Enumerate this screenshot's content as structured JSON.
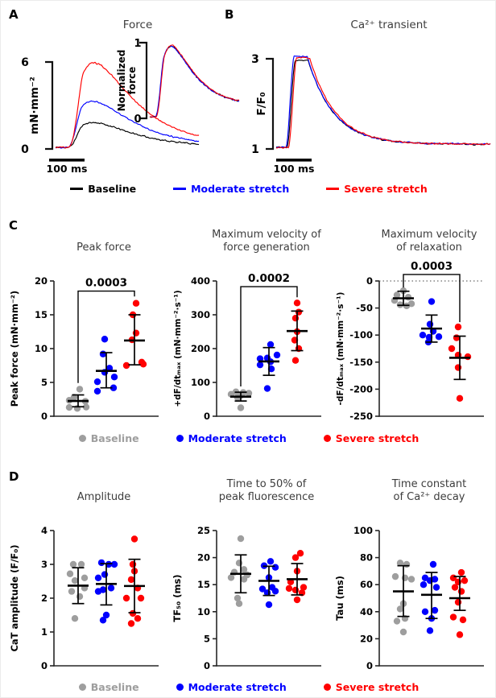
{
  "figure": {
    "panel_a": "A",
    "panel_b": "B",
    "panel_c": "C",
    "panel_d": "D"
  },
  "colors": {
    "baseline_trace": "#000000",
    "moderate": "#0000ff",
    "severe": "#ff0000",
    "baseline_dot": "#9e9e9e",
    "title_text": "#3d3d3d",
    "axis": "#262626"
  },
  "legends": {
    "traces": [
      {
        "label": "Baseline",
        "color": "#000000"
      },
      {
        "label": "Moderate stretch",
        "color": "#0000ff"
      },
      {
        "label": "Severe stretch",
        "color": "#ff0000"
      }
    ],
    "dots": [
      {
        "label": "Baseline",
        "color": "#9e9e9e"
      },
      {
        "label": "Moderate stretch",
        "color": "#0000ff"
      },
      {
        "label": "Severe stretch",
        "color": "#ff0000"
      }
    ]
  },
  "chart_data": [
    {
      "id": "force_traces",
      "type": "line",
      "panel": "A",
      "ylabel": "mN·mm⁻²",
      "yticks": [
        "6",
        "0"
      ],
      "vmin": 0,
      "vmax": 6,
      "scalebar_label": "100 ms",
      "scalebar_ms": 100,
      "shape": {
        "t0": 38,
        "tau_r": 65,
        "tau_d": 115,
        "soft": 55,
        "tail": 0.04,
        "noise": 0.14,
        "dur": 480
      },
      "series": [
        {
          "name": "Baseline",
          "color": "#000000",
          "amp": 1.72,
          "seed": 11,
          "dt": 0,
          "nmul": 1
        },
        {
          "name": "Moderate stretch",
          "color": "#0000ff",
          "amp": 3.2,
          "seed": 22,
          "dt": -2,
          "nmul": 0.9
        },
        {
          "name": "Severe stretch",
          "color": "#ff0000",
          "amp": 5.85,
          "seed": 33,
          "dt": 3,
          "nmul": 1
        }
      ],
      "inset": {
        "title": "Force",
        "ylabel_lines": [
          "Normalized",
          "force"
        ],
        "yticks": [
          "1",
          "0"
        ],
        "vmin": 0,
        "vmax": 1,
        "shape": {
          "t0": 30,
          "tau_r": 65,
          "tau_d": 115,
          "soft": 55,
          "tail": 0.17,
          "noise": 0.03,
          "dur": 520
        },
        "series": [
          {
            "name": "Baseline",
            "color": "#000000",
            "amp": 0.95,
            "seed": 71,
            "dt": 0,
            "nmul": 1
          },
          {
            "name": "Moderate stretch",
            "color": "#0000ff",
            "amp": 0.95,
            "seed": 82,
            "dt": -2,
            "nmul": 0.8
          },
          {
            "name": "Severe stretch",
            "color": "#ff0000",
            "amp": 0.96,
            "seed": 93,
            "dt": 2,
            "nmul": 0.7
          }
        ]
      }
    },
    {
      "id": "cat_traces",
      "type": "line",
      "panel": "B",
      "title": "Ca²⁺ transient",
      "ylabel": "F/F₀",
      "yticks": [
        "3",
        "1"
      ],
      "vmin": 1,
      "vmax": 3,
      "scalebar_label": "100 ms",
      "scalebar_ms": 100,
      "shape": {
        "t0": 30,
        "rise": 24,
        "hold": 60,
        "tau_d": 72,
        "tail": 0.035,
        "noise": 0.05,
        "dur": 600
      },
      "series": [
        {
          "name": "Baseline",
          "color": "#000000",
          "amp": 1.93,
          "seed": 41,
          "dt": 0,
          "nmul": 1
        },
        {
          "name": "Moderate stretch",
          "color": "#0000ff",
          "amp": 2.02,
          "seed": 52,
          "dt": -3,
          "nmul": 0.9
        },
        {
          "name": "Severe stretch",
          "color": "#ff0000",
          "amp": 1.98,
          "seed": 63,
          "dt": 4,
          "nmul": 0.9
        }
      ]
    },
    {
      "id": "peak_force",
      "type": "scatter",
      "panel": "C",
      "title": "Peak force",
      "ylabel": "Peak force (mN·mm⁻²)",
      "ymin": 0,
      "ymax": 20,
      "tick": 5,
      "pvalue": {
        "label": "0.0003",
        "from": 0,
        "to": 2,
        "bar_v": 18.5,
        "drop_a": 4.9,
        "drop_b": 17.7
      },
      "groups": [
        {
          "name": "Baseline",
          "color": "#9e9e9e",
          "mean": 2.25,
          "err": [
            1.4,
            3.15
          ],
          "points": [
            [
              2,
              4.0
            ],
            [
              -5,
              2.8
            ],
            [
              -11,
              2.35
            ],
            [
              9,
              2.2
            ],
            [
              -11,
              1.3
            ],
            [
              -1,
              1.15
            ],
            [
              10,
              1.35
            ]
          ]
        },
        {
          "name": "Moderate stretch",
          "color": "#0000ff",
          "mean": 6.7,
          "err": [
            4.2,
            9.4
          ],
          "points": [
            [
              -2,
              11.4
            ],
            [
              -4,
              9.2
            ],
            [
              4,
              7.1
            ],
            [
              -2,
              6.5
            ],
            [
              10,
              5.8
            ],
            [
              -11,
              5.1
            ],
            [
              9,
              4.2
            ],
            [
              -11,
              3.7
            ]
          ]
        },
        {
          "name": "Severe stretch",
          "color": "#ff0000",
          "mean": 11.2,
          "err": [
            7.6,
            15.0
          ],
          "points": [
            [
              2,
              16.7
            ],
            [
              -2,
              15.0
            ],
            [
              2,
              12.3
            ],
            [
              -3,
              11.3
            ],
            [
              9,
              8.0
            ],
            [
              11,
              7.7
            ],
            [
              -10,
              7.5
            ]
          ]
        }
      ]
    },
    {
      "id": "max_vel_force",
      "type": "scatter",
      "panel": "C",
      "title": "Maximum velocity of\nforce generation",
      "ylabel": "+dF/dtₘₐₓ (mN·mm⁻²·s⁻¹)",
      "ymin": 0,
      "ymax": 400,
      "tick": 100,
      "pvalue": {
        "label": "0.0002",
        "from": 0,
        "to": 2,
        "bar_v": 383,
        "drop_a": 88,
        "drop_b": 352
      },
      "groups": [
        {
          "name": "Baseline",
          "color": "#9e9e9e",
          "mean": 58,
          "err": [
            45,
            71
          ],
          "points": [
            [
              -6,
              72
            ],
            [
              3,
              70
            ],
            [
              10,
              68
            ],
            [
              -12,
              65
            ],
            [
              0,
              61
            ],
            [
              -4,
              55
            ],
            [
              0,
              25
            ]
          ]
        },
        {
          "name": "Moderate stretch",
          "color": "#0000ff",
          "mean": 162,
          "err": [
            121,
            203
          ],
          "points": [
            [
              2,
              212
            ],
            [
              10,
              181
            ],
            [
              -2,
              172
            ],
            [
              -11,
              170
            ],
            [
              2,
              161
            ],
            [
              -11,
              152
            ],
            [
              3,
              140
            ],
            [
              -2,
              82
            ]
          ]
        },
        {
          "name": "Severe stretch",
          "color": "#ff0000",
          "mean": 252,
          "err": [
            194,
            311
          ],
          "points": [
            [
              0,
              335
            ],
            [
              2,
              308
            ],
            [
              -2,
              290
            ],
            [
              0,
              250
            ],
            [
              -3,
              225
            ],
            [
              2,
              200
            ],
            [
              -2,
              165
            ]
          ]
        }
      ]
    },
    {
      "id": "max_vel_relax",
      "type": "scatter",
      "panel": "C",
      "title": "Maximum velocity\nof relaxation",
      "ylabel": "-dF/dtₘₐₓ (mN·mm⁻²·s⁻¹)",
      "ymin": -250,
      "ymax": 0,
      "tick": 50,
      "pvalue": {
        "label": "0.0003",
        "from": 0,
        "to": 2,
        "bar_v": 12,
        "drop_a": -12,
        "drop_b": -76
      },
      "groups": [
        {
          "name": "Baseline",
          "color": "#9e9e9e",
          "mean": -32,
          "err": [
            -19,
            -45
          ],
          "points": [
            [
              0,
              -18
            ],
            [
              -8,
              -26
            ],
            [
              6,
              -30
            ],
            [
              -11,
              -36
            ],
            [
              10,
              -42
            ],
            [
              -4,
              -44
            ],
            [
              4,
              -46
            ]
          ]
        },
        {
          "name": "Moderate stretch",
          "color": "#0000ff",
          "mean": -88,
          "err": [
            -63,
            -113
          ],
          "points": [
            [
              0,
              -38
            ],
            [
              -2,
              -80
            ],
            [
              2,
              -93
            ],
            [
              -11,
              -100
            ],
            [
              -3,
              -104
            ],
            [
              9,
              -103
            ],
            [
              -4,
              -113
            ]
          ]
        },
        {
          "name": "Severe stretch",
          "color": "#ff0000",
          "mean": -142,
          "err": [
            -102,
            -182
          ],
          "points": [
            [
              -2,
              -85
            ],
            [
              -4,
              -105
            ],
            [
              -10,
              -125
            ],
            [
              -2,
              -137
            ],
            [
              10,
              -140
            ],
            [
              -2,
              -160
            ],
            [
              0,
              -217
            ]
          ]
        }
      ]
    },
    {
      "id": "cat_amplitude",
      "type": "scatter",
      "panel": "D",
      "title": "Amplitude",
      "ylabel": "CaT amplitude (F/F₀)",
      "ymin": 0,
      "ymax": 4,
      "tick": 1,
      "groups": [
        {
          "name": "Baseline",
          "color": "#9e9e9e",
          "mean": 2.37,
          "err": [
            1.84,
            2.9
          ],
          "points": [
            [
              -6,
              3.0
            ],
            [
              4,
              3.0
            ],
            [
              -10,
              2.72
            ],
            [
              8,
              2.6
            ],
            [
              -4,
              2.52
            ],
            [
              8,
              2.3
            ],
            [
              -8,
              2.2
            ],
            [
              2,
              2.05
            ],
            [
              -4,
              1.4
            ]
          ]
        },
        {
          "name": "Moderate stretch",
          "color": "#0000ff",
          "mean": 2.42,
          "err": [
            1.8,
            3.02
          ],
          "points": [
            [
              -6,
              3.05
            ],
            [
              3,
              3.0
            ],
            [
              10,
              3.0
            ],
            [
              -2,
              2.7
            ],
            [
              -10,
              2.6
            ],
            [
              6,
              2.3
            ],
            [
              -4,
              2.25
            ],
            [
              -10,
              2.2
            ],
            [
              0,
              1.5
            ],
            [
              -4,
              1.35
            ]
          ]
        },
        {
          "name": "Severe stretch",
          "color": "#ff0000",
          "mean": 2.36,
          "err": [
            1.57,
            3.15
          ],
          "points": [
            [
              0,
              3.75
            ],
            [
              -2,
              3.0
            ],
            [
              0,
              2.8
            ],
            [
              -4,
              2.55
            ],
            [
              4,
              2.3
            ],
            [
              -10,
              2.0
            ],
            [
              8,
              2.0
            ],
            [
              -2,
              1.55
            ],
            [
              4,
              1.4
            ],
            [
              -4,
              1.25
            ]
          ]
        }
      ]
    },
    {
      "id": "tf50",
      "type": "scatter",
      "panel": "D",
      "title": "Time to 50% of\npeak fluorescence",
      "ylabel": "TF₅₀ (ms)",
      "ymin": 0,
      "ymax": 25,
      "tick": 5,
      "groups": [
        {
          "name": "Baseline",
          "color": "#9e9e9e",
          "mean": 17,
          "err": [
            13.5,
            20.5
          ],
          "points": [
            [
              0,
              23.5
            ],
            [
              -2,
              19.0
            ],
            [
              4,
              17.8
            ],
            [
              -8,
              17.3
            ],
            [
              8,
              16.8
            ],
            [
              -12,
              16.3
            ],
            [
              4,
              16.0
            ],
            [
              -4,
              12.5
            ],
            [
              -2,
              11.5
            ]
          ]
        },
        {
          "name": "Moderate stretch",
          "color": "#0000ff",
          "mean": 15.7,
          "err": [
            13.0,
            18.4
          ],
          "points": [
            [
              2,
              19.3
            ],
            [
              -6,
              18.5
            ],
            [
              8,
              18.2
            ],
            [
              0,
              16.3
            ],
            [
              4,
              14.5
            ],
            [
              -8,
              14.2
            ],
            [
              8,
              13.8
            ],
            [
              -2,
              13.5
            ],
            [
              0,
              11.3
            ]
          ]
        },
        {
          "name": "Severe stretch",
          "color": "#ff0000",
          "mean": 16,
          "err": [
            13.1,
            18.9
          ],
          "points": [
            [
              4,
              20.8
            ],
            [
              -2,
              20.0
            ],
            [
              0,
              17.5
            ],
            [
              -8,
              15.5
            ],
            [
              8,
              14.5
            ],
            [
              -10,
              14.3
            ],
            [
              -2,
              14.0
            ],
            [
              6,
              13.5
            ],
            [
              0,
              12.2
            ]
          ]
        }
      ]
    },
    {
      "id": "tau",
      "type": "scatter",
      "panel": "D",
      "title": "Time constant\nof Ca²⁺ decay",
      "ylabel": "Tau (ms)",
      "ymin": 0,
      "ymax": 100,
      "tick": 20,
      "groups": [
        {
          "name": "Baseline",
          "color": "#9e9e9e",
          "mean": 55,
          "err": [
            36.5,
            74
          ],
          "points": [
            [
              -4,
              76
            ],
            [
              4,
              75
            ],
            [
              -10,
              66
            ],
            [
              2,
              65
            ],
            [
              10,
              64
            ],
            [
              0,
              46
            ],
            [
              -4,
              42
            ],
            [
              2,
              35
            ],
            [
              -8,
              33
            ],
            [
              0,
              25
            ]
          ]
        },
        {
          "name": "Moderate stretch",
          "color": "#0000ff",
          "mean": 52.5,
          "err": [
            35,
            69
          ],
          "points": [
            [
              2,
              75
            ],
            [
              -8,
              65
            ],
            [
              4,
              64
            ],
            [
              -2,
              63
            ],
            [
              -10,
              60
            ],
            [
              6,
              58
            ],
            [
              4,
              41
            ],
            [
              -8,
              40
            ],
            [
              0,
              35
            ],
            [
              -2,
              26
            ]
          ]
        },
        {
          "name": "Severe stretch",
          "color": "#ff0000",
          "mean": 50,
          "err": [
            41,
            66
          ],
          "points": [
            [
              2,
              69
            ],
            [
              -8,
              65
            ],
            [
              6,
              63
            ],
            [
              -2,
              62
            ],
            [
              -6,
              58
            ],
            [
              2,
              55
            ],
            [
              -2,
              47
            ],
            [
              -8,
              36
            ],
            [
              4,
              34
            ],
            [
              0,
              23
            ]
          ]
        }
      ]
    }
  ]
}
